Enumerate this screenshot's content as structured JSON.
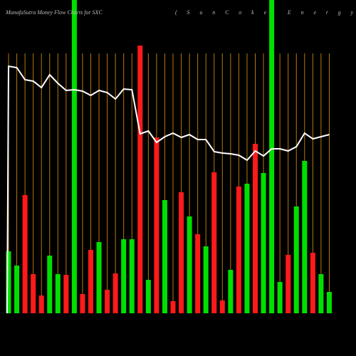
{
  "chart_data": {
    "type": "money-flow",
    "title": "MunafaSutra  Money Flow  Charts for SXC",
    "subtitle": "(SunCoke Energy",
    "ylim": [
      0,
      440
    ],
    "bars": {
      "values": [
        87,
        67,
        166,
        55,
        25,
        81,
        55,
        54,
        440,
        27,
        89,
        100,
        33,
        56,
        104,
        104,
        376,
        47,
        247,
        159,
        17,
        170,
        136,
        111,
        94,
        198,
        18,
        61,
        178,
        182,
        238,
        197,
        440,
        44,
        82,
        150,
        214,
        85,
        55,
        30
      ],
      "colors": [
        "#00e000",
        "#00e000",
        "#ff1a1a",
        "#ff1a1a",
        "#ff1a1a",
        "#00e000",
        "#00e000",
        "#ff1a1a",
        "#00e000",
        "#ff1a1a",
        "#ff1a1a",
        "#00e000",
        "#ff1a1a",
        "#ff1a1a",
        "#00e000",
        "#00e000",
        "#ff1a1a",
        "#00e000",
        "#ff1a1a",
        "#00e000",
        "#ff1a1a",
        "#ff1a1a",
        "#00e000",
        "#ff1a1a",
        "#00e000",
        "#ff1a1a",
        "#ff1a1a",
        "#00e000",
        "#ff1a1a",
        "#00e000",
        "#ff1a1a",
        "#00e000",
        "#00e000",
        "#00e000",
        "#ff1a1a",
        "#00e000",
        "#00e000",
        "#ff1a1a",
        "#00e000",
        "#00e000"
      ]
    },
    "line": {
      "color": "#ffffff",
      "values": [
        347,
        345,
        328,
        326,
        317,
        335,
        323,
        313,
        314,
        312,
        306,
        313,
        310,
        301,
        315,
        314,
        252,
        256,
        240,
        248,
        253,
        247,
        251,
        244,
        244,
        227,
        225,
        224,
        222,
        215,
        228,
        221,
        231,
        231,
        228,
        234,
        253,
        245,
        248,
        251
      ]
    },
    "guide_color": "#b8780a"
  }
}
